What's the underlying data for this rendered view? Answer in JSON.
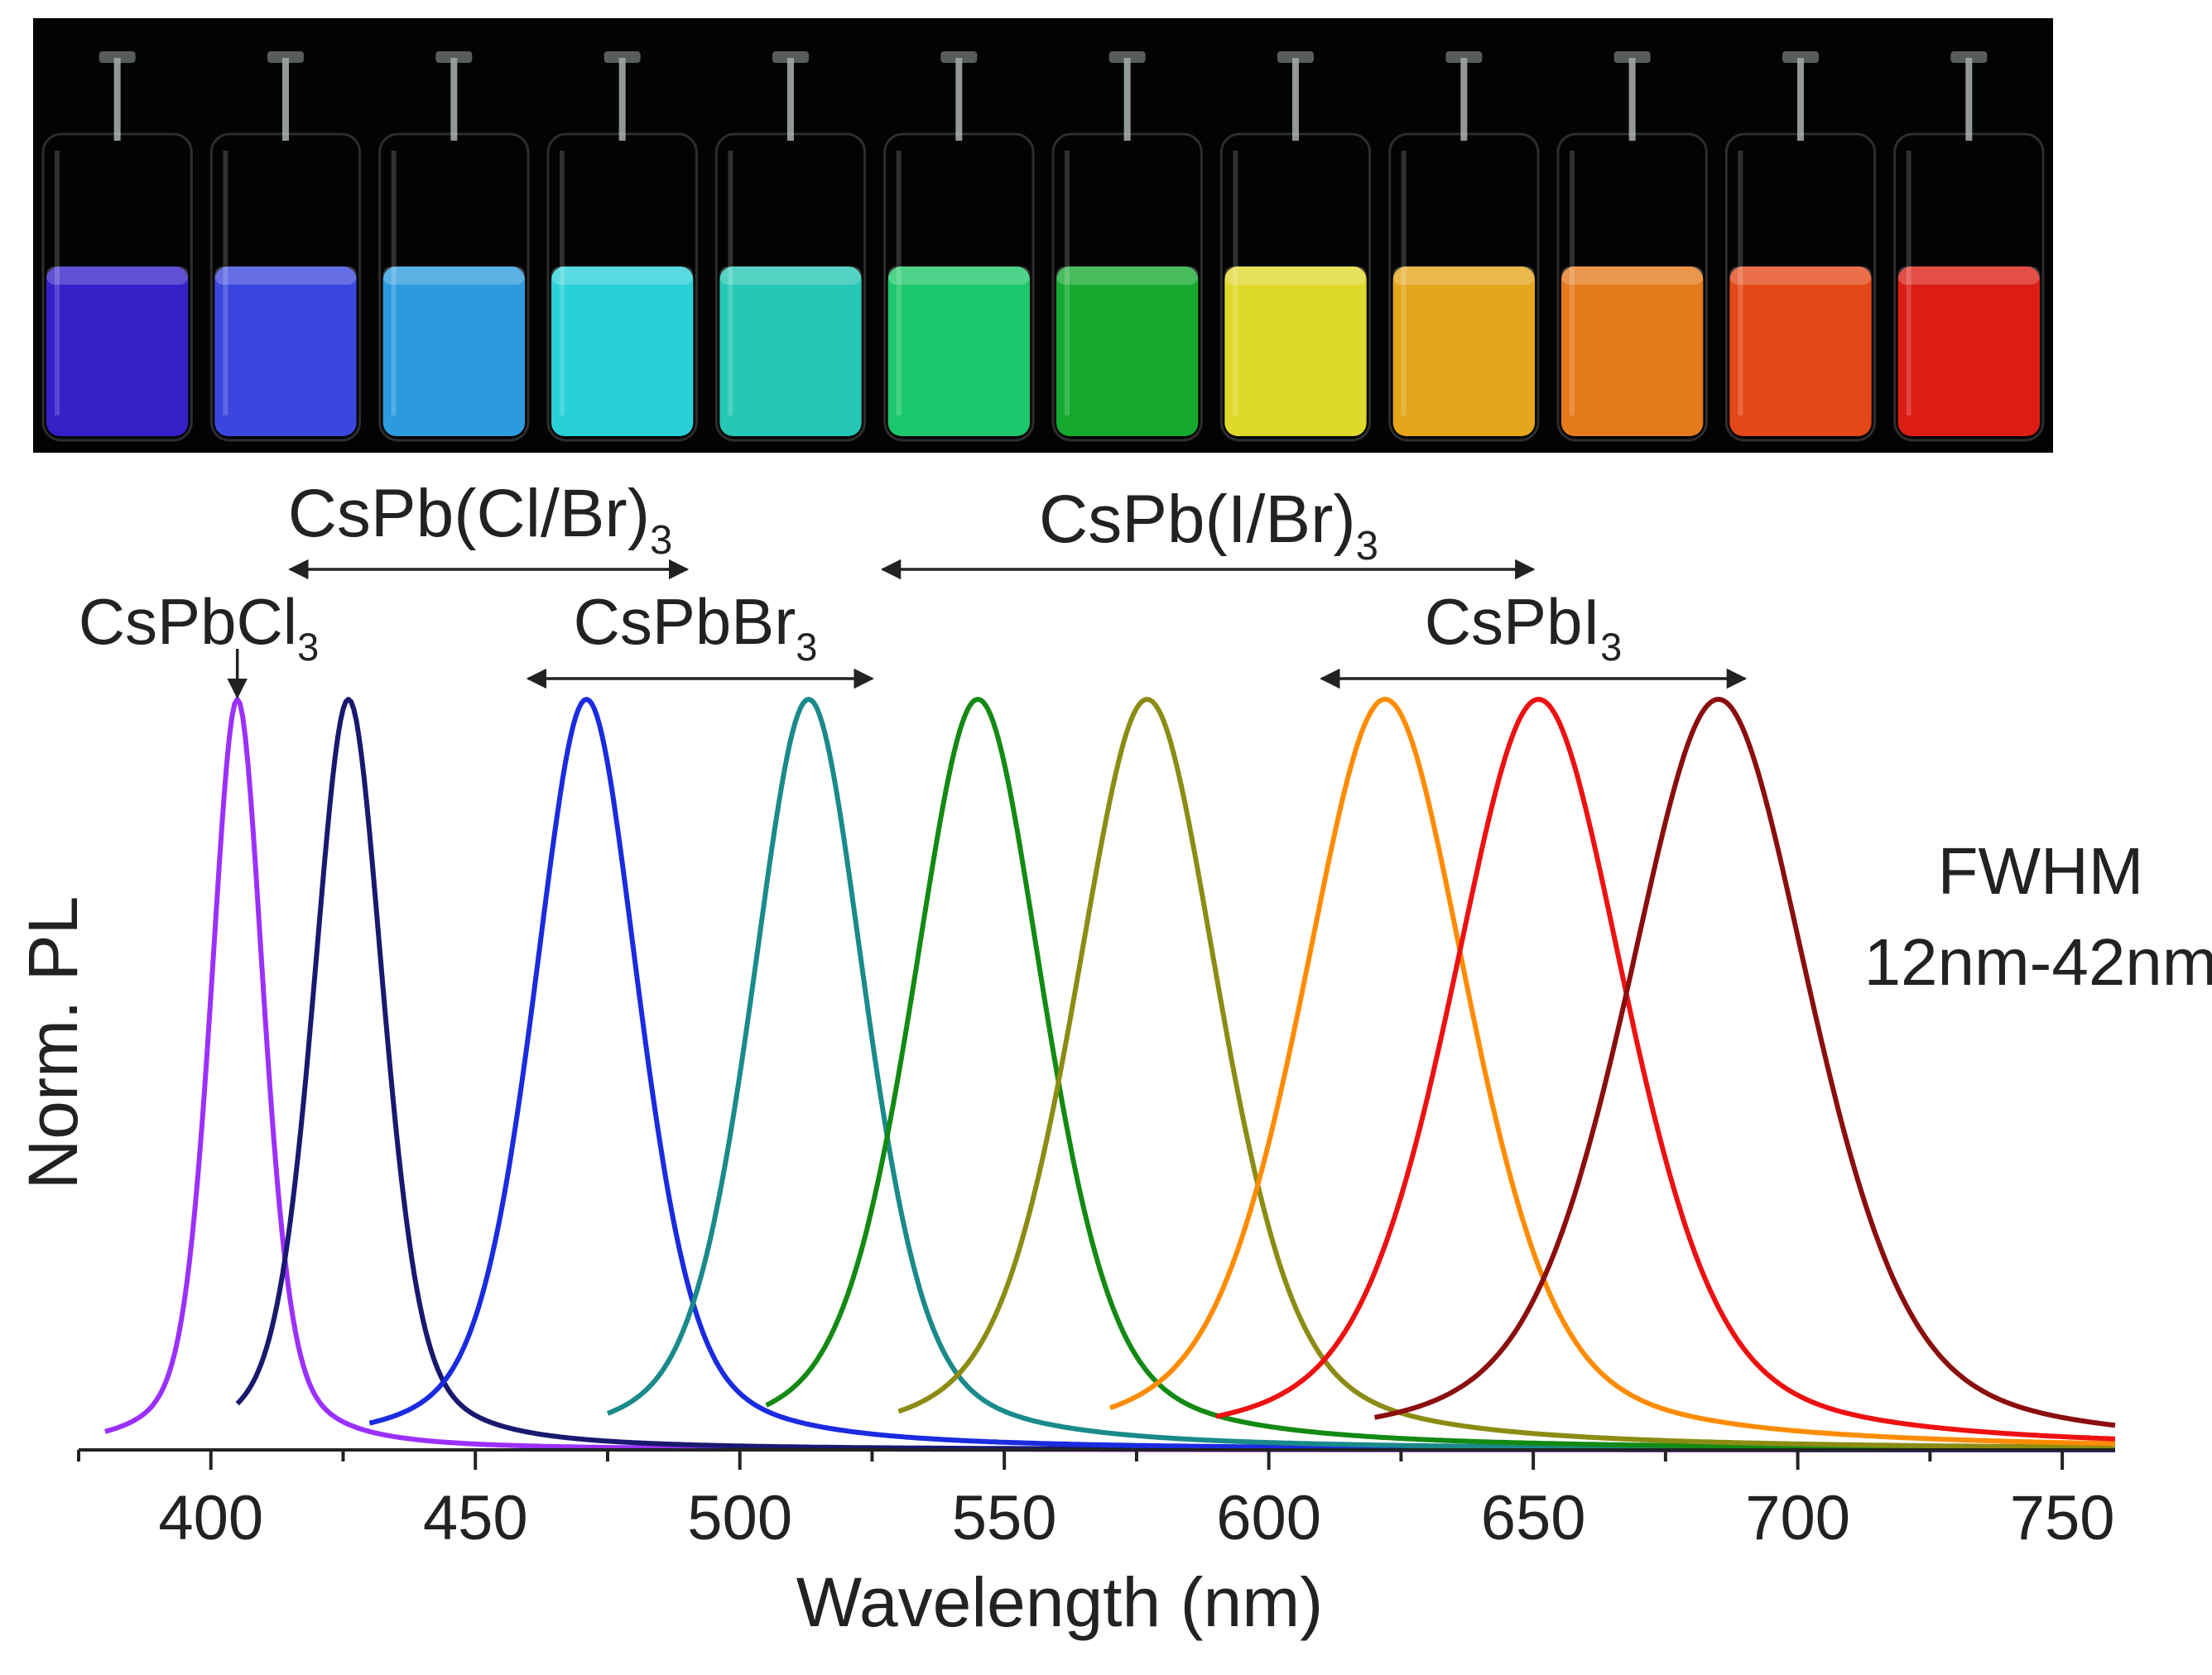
{
  "chart_data": {
    "type": "line",
    "xlabel": "Wavelength (nm)",
    "ylabel": "Norm. PL",
    "xlim": [
      375,
      760
    ],
    "ylim": [
      0,
      1
    ],
    "x_ticks": [
      400,
      450,
      500,
      550,
      600,
      650,
      700,
      750
    ],
    "x_minor_step": 25,
    "grid": false,
    "series": [
      {
        "peak": 405,
        "fwhm": 12,
        "color": "#9b30ff",
        "start": 380
      },
      {
        "peak": 426,
        "fwhm": 16,
        "color": "#191970",
        "start": 405
      },
      {
        "peak": 471,
        "fwhm": 24,
        "color": "#1a2be0",
        "start": 430
      },
      {
        "peak": 513,
        "fwhm": 26,
        "color": "#1a8a8a",
        "start": 475
      },
      {
        "peak": 545,
        "fwhm": 30,
        "color": "#138a13",
        "start": 505
      },
      {
        "peak": 577,
        "fwhm": 33,
        "color": "#8c8c14",
        "start": 530
      },
      {
        "peak": 622,
        "fwhm": 38,
        "color": "#ff8c00",
        "start": 570
      },
      {
        "peak": 651,
        "fwhm": 40,
        "color": "#ee1111",
        "start": 590
      },
      {
        "peak": 685,
        "fwhm": 42,
        "color": "#8b0e0e",
        "start": 620
      }
    ],
    "annotations": {
      "cspbcl3": {
        "base": "CsPbCl",
        "sub": "3",
        "arrow_x": 405
      },
      "cspb_cl_br": {
        "base": "CsPb(Cl/Br)",
        "sub": "3",
        "from": 415,
        "to": 490
      },
      "cspbbr3": {
        "base": "CsPbBr",
        "sub": "3",
        "from": 460,
        "to": 525
      },
      "cspb_i_br": {
        "base": "CsPb(I/Br)",
        "sub": "3",
        "from": 527,
        "to": 650
      },
      "cspbi3": {
        "base": "CsPbI",
        "sub": "3",
        "from": 610,
        "to": 690
      }
    },
    "fwhm_note": {
      "line1": "FWHM",
      "line2": "12nm-42nm"
    }
  },
  "photo": {
    "vials": [
      {
        "color": "#3a22d8"
      },
      {
        "color": "#3f4cf0"
      },
      {
        "color": "#2fa8f0"
      },
      {
        "color": "#2ee2ea"
      },
      {
        "color": "#28d8c4"
      },
      {
        "color": "#1fd874"
      },
      {
        "color": "#17b833"
      },
      {
        "color": "#f2ec30"
      },
      {
        "color": "#f8b41e"
      },
      {
        "color": "#f8841e"
      },
      {
        "color": "#f74d1a"
      },
      {
        "color": "#ee2016"
      }
    ]
  }
}
